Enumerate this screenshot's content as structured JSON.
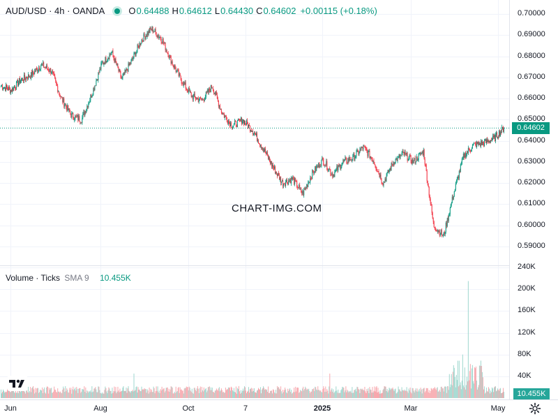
{
  "header": {
    "symbol": "AUD/USD · 4h · OANDA",
    "open_label": "O",
    "open": "0.64488",
    "high_label": "H",
    "high": "0.64612",
    "low_label": "L",
    "low": "0.64430",
    "close_label": "C",
    "close": "0.64602",
    "change": "+0.00115 (+0.18%)"
  },
  "volume_header": {
    "label": "Volume · Ticks",
    "sma": "SMA 9",
    "value": "10.455K"
  },
  "watermark": "CHART-IMG.COM",
  "price_axis": [
    "0.70000",
    "0.69000",
    "0.68000",
    "0.67000",
    "0.66000",
    "0.65000",
    "0.64000",
    "0.63000",
    "0.62000",
    "0.61000",
    "0.60000",
    "0.59000"
  ],
  "volume_axis": [
    "240K",
    "200K",
    "160K",
    "120K",
    "80K",
    "40K"
  ],
  "time_axis": [
    "Jun",
    "Aug",
    "Oct",
    "7",
    "2025",
    "Mar",
    "May"
  ],
  "last_price_tag": "0.64602",
  "last_volume_tag": "10.455K",
  "colors": {
    "up": "#089981",
    "down": "#f23645",
    "grid": "#f0f3fa",
    "axis_text": "#131722"
  },
  "chart_data": {
    "type": "line",
    "title": "AUD/USD · 4h · OANDA",
    "price_series_close_approx": [
      [
        "Jun",
        0.666
      ],
      [
        "Jun",
        0.664
      ],
      [
        "Jul",
        0.669
      ],
      [
        "Jul",
        0.671
      ],
      [
        "Jul",
        0.676
      ],
      [
        "Jul",
        0.673
      ],
      [
        "Aug",
        0.66
      ],
      [
        "Aug",
        0.652
      ],
      [
        "Aug",
        0.65
      ],
      [
        "Aug",
        0.662
      ],
      [
        "Aug",
        0.676
      ],
      [
        "Sep",
        0.682
      ],
      [
        "Sep",
        0.669
      ],
      [
        "Sep",
        0.678
      ],
      [
        "Sep",
        0.688
      ],
      [
        "Oct",
        0.693
      ],
      [
        "Oct",
        0.688
      ],
      [
        "Oct",
        0.677
      ],
      [
        "Oct",
        0.668
      ],
      [
        "Oct",
        0.661
      ],
      [
        "Nov",
        0.659
      ],
      [
        "Nov",
        0.666
      ],
      [
        "Nov",
        0.653
      ],
      [
        "Nov",
        0.647
      ],
      [
        "Nov",
        0.65
      ],
      [
        "Dec",
        0.645
      ],
      [
        "Dec",
        0.637
      ],
      [
        "Dec",
        0.628
      ],
      [
        "Dec",
        0.62
      ],
      [
        "Jan",
        0.622
      ],
      [
        "Jan",
        0.615
      ],
      [
        "Jan",
        0.625
      ],
      [
        "Jan",
        0.631
      ],
      [
        "Feb",
        0.624
      ],
      [
        "Feb",
        0.63
      ],
      [
        "Feb",
        0.632
      ],
      [
        "Feb",
        0.637
      ],
      [
        "Mar",
        0.631
      ],
      [
        "Mar",
        0.62
      ],
      [
        "Mar",
        0.63
      ],
      [
        "Mar",
        0.634
      ],
      [
        "Apr",
        0.63
      ],
      [
        "Apr",
        0.635
      ],
      [
        "Apr",
        0.6
      ],
      [
        "Apr",
        0.595
      ],
      [
        "Apr",
        0.615
      ],
      [
        "Apr",
        0.633
      ],
      [
        "Apr",
        0.638
      ],
      [
        "May",
        0.639
      ],
      [
        "May",
        0.641
      ],
      [
        "May",
        0.646
      ]
    ],
    "ylim": [
      0.587,
      0.702
    ],
    "volume_ylim": [
      0,
      240000
    ],
    "last_close": 0.64602,
    "last_volume": 10455
  }
}
